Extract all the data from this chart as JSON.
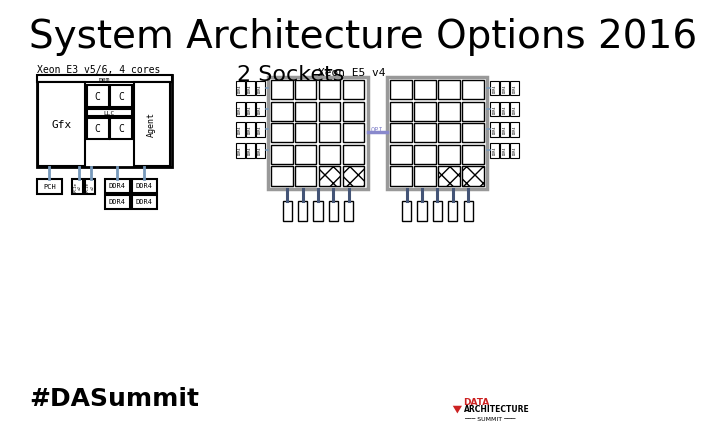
{
  "title": "System Architecture Options 2016",
  "title_fontsize": 28,
  "bg_color": "#ffffff",
  "text_color": "#000000",
  "label_e3": "Xeon E3 v5/6, 4 cores",
  "label_2sockets": "2 Sockets",
  "label_e5": "Xeon E5 v4",
  "hashtag": "#DASummit",
  "qpi_color": "#8888cc",
  "connector_color": "#7799bb",
  "box_color": "#000000"
}
